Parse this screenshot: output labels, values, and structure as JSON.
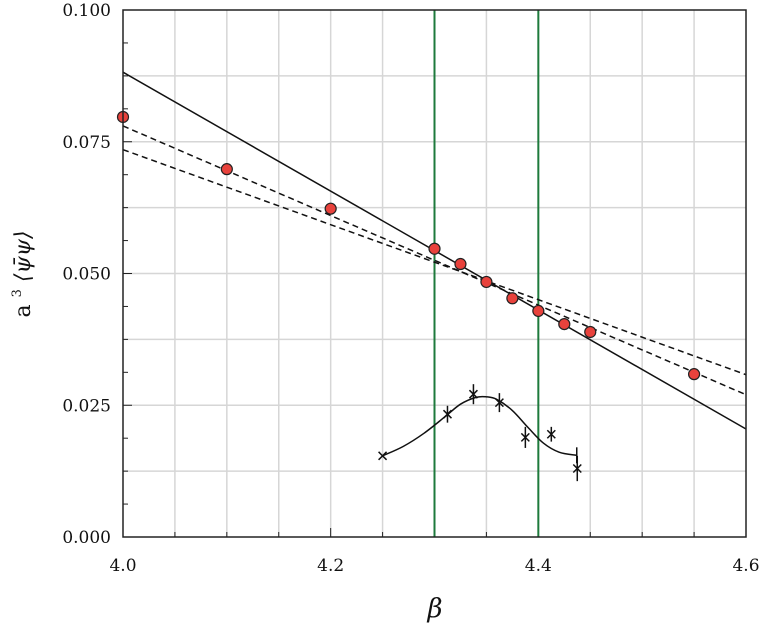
{
  "chart_data": {
    "type": "scatter",
    "xlabel": "β",
    "ylabel_prefix": "a",
    "ylabel_exp": "3",
    "ylabel_body": "⟨ψ̄ψ⟩",
    "xlim": [
      4.0,
      4.6
    ],
    "ylim": [
      0.0,
      0.1
    ],
    "x_ticks": [
      4.0,
      4.2,
      4.4,
      4.6
    ],
    "x_tick_labels": [
      "4.0",
      "4.2",
      "4.4",
      "4.6"
    ],
    "y_ticks": [
      0.0,
      0.025,
      0.05,
      0.075,
      0.1
    ],
    "y_tick_labels": [
      "0.000",
      "0.025",
      "0.050",
      "0.075",
      "0.100"
    ],
    "grid": true,
    "series": [
      {
        "kind": "points",
        "color": "#e8423c",
        "x": [
          4.0,
          4.1,
          4.2,
          4.3,
          4.325,
          4.35,
          4.375,
          4.4,
          4.425,
          4.45,
          4.55
        ],
        "y": [
          0.0797,
          0.0698,
          0.0623,
          0.0547,
          0.0518,
          0.0484,
          0.0453,
          0.0429,
          0.0404,
          0.0389,
          0.0309
        ]
      },
      {
        "kind": "crosses",
        "color": "#111111",
        "x": [
          4.25,
          4.3125,
          4.3375,
          4.3625,
          4.3875,
          4.4125,
          4.4375
        ],
        "y": [
          0.0154,
          0.0233,
          0.0271,
          0.0255,
          0.0189,
          0.0195,
          0.013
        ],
        "err": [
          0.0,
          0.0016,
          0.0019,
          0.0018,
          0.002,
          0.0014,
          0.0024
        ]
      }
    ],
    "lines": [
      {
        "style": "solid",
        "color": "#111111",
        "x": [
          4.0,
          4.6
        ],
        "y": [
          0.0882,
          0.0205
        ]
      },
      {
        "style": "dashed",
        "color": "#111111",
        "x": [
          4.0,
          4.6
        ],
        "y": [
          0.078,
          0.027
        ]
      },
      {
        "style": "dashed",
        "color": "#111111",
        "x": [
          4.0,
          4.6
        ],
        "y": [
          0.0735,
          0.0308
        ]
      }
    ],
    "curve": {
      "color": "#111111",
      "x": [
        4.25,
        4.27,
        4.29,
        4.31,
        4.325,
        4.34,
        4.35,
        4.36,
        4.375,
        4.39,
        4.405,
        4.42,
        4.437
      ],
      "y": [
        0.0154,
        0.0172,
        0.0197,
        0.0228,
        0.0252,
        0.0265,
        0.0266,
        0.0261,
        0.024,
        0.0208,
        0.0178,
        0.0161,
        0.0155
      ]
    },
    "vlines": [
      {
        "x": 4.3,
        "color": "#1e7a3c"
      },
      {
        "x": 4.4,
        "color": "#1e7a3c"
      }
    ]
  }
}
